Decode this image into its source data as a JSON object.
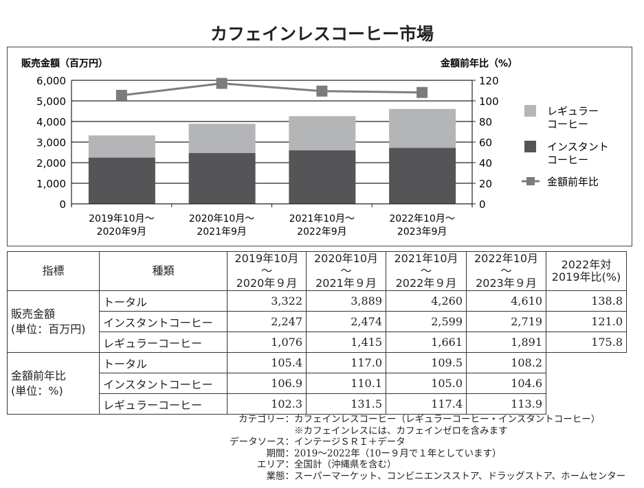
{
  "chart_data": {
    "type": "bar",
    "title": "カフェインレスコーヒー市場",
    "categories": [
      [
        "2019年10月～",
        "2020年9月"
      ],
      [
        "2020年10月～",
        "2021年9月"
      ],
      [
        "2021年10月～",
        "2022年9月"
      ],
      [
        "2022年10月～",
        "2023年9月"
      ]
    ],
    "ylabel": "販売金額（百万円）",
    "y2label": "金額前年比（%）",
    "ylim": [
      0,
      6000
    ],
    "y2lim": [
      0,
      120
    ],
    "yticks": [
      "0",
      "1,000",
      "2,000",
      "3,000",
      "4,000",
      "5,000",
      "6,000"
    ],
    "y2ticks": [
      "0",
      "20",
      "40",
      "60",
      "80",
      "100",
      "120"
    ],
    "series": [
      {
        "name": "インスタントコーヒー",
        "legend": [
          "インスタント",
          "コーヒー"
        ],
        "type": "bar",
        "stack": true,
        "color": "#555557",
        "values": [
          2247,
          2474,
          2599,
          2719
        ]
      },
      {
        "name": "レギュラーコーヒー",
        "legend": [
          "レギュラー",
          "コーヒー"
        ],
        "type": "bar",
        "stack": true,
        "color": "#b4b5b7",
        "values": [
          1076,
          1415,
          1661,
          1891
        ]
      },
      {
        "name": "金額前年比",
        "legend": [
          "金額前年比"
        ],
        "type": "line",
        "axis": "right",
        "color": "#7b7c7e",
        "values": [
          105.4,
          117.0,
          109.5,
          108.2
        ]
      }
    ],
    "grid": true,
    "legend_position": "right"
  },
  "table": {
    "headers": [
      "指標",
      "種類",
      "2019年10月～\n2020年９月",
      "2020年10月～\n2021年９月",
      "2021年10月～\n2022年９月",
      "2022年10月～\n2023年９月",
      "2022年対\n2019年比(%)"
    ],
    "groups": [
      {
        "label": "販売金額\n(単位：百万円)",
        "rows": [
          [
            "トータル",
            "3,322",
            "3,889",
            "4,260",
            "4,610",
            "138.8"
          ],
          [
            "インスタントコーヒー",
            "2,247",
            "2,474",
            "2,599",
            "2,719",
            "121.0"
          ],
          [
            "レギュラーコーヒー",
            "1,076",
            "1,415",
            "1,661",
            "1,891",
            "175.8"
          ]
        ]
      },
      {
        "label": "金額前年比\n(単位：%)",
        "rows": [
          [
            "トータル",
            "105.4",
            "117.0",
            "109.5",
            "108.2"
          ],
          [
            "インスタントコーヒー",
            "106.9",
            "110.1",
            "105.0",
            "104.6"
          ],
          [
            "レギュラーコーヒー",
            "102.3",
            "131.5",
            "117.4",
            "113.9"
          ]
        ]
      }
    ]
  },
  "notes": [
    {
      "label": "カテゴリー：",
      "text": "カフェインレスコーヒー（レギュラーコーヒー・インスタントコーヒー）"
    },
    {
      "label": "",
      "text": "※カフェインレスには、カフェインゼロを含みます"
    },
    {
      "label": "データソース：",
      "text": "インテージＳＲＩ＋データ"
    },
    {
      "label": "期間：",
      "text": "2019～2022年（10ー９月で１年としています）"
    },
    {
      "label": "エリア：",
      "text": "全国計（沖縄県を含む）"
    },
    {
      "label": "業態：",
      "text": "スーパーマーケット、コンビニエンスストア、ドラッグストア、ホームセンター"
    }
  ]
}
